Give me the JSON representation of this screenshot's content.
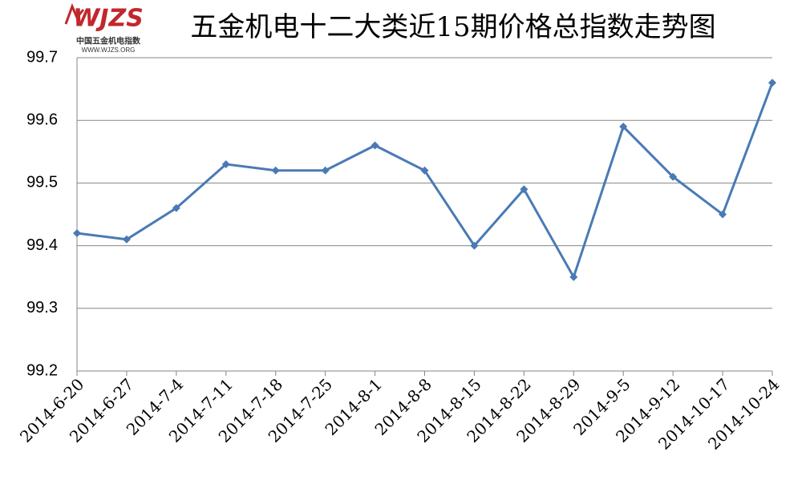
{
  "logo": {
    "mark": "WJZS",
    "name": "中国五金机电指数",
    "url": "WWW.WJZS.ORG"
  },
  "chart_data": {
    "type": "line",
    "title": "五金机电十二大类近15期价格总指数走势图",
    "categories": [
      "2014-6-20",
      "2014-6-27",
      "2014-7-4",
      "2014-7-11",
      "2014-7-18",
      "2014-7-25",
      "2014-8-1",
      "2014-8-8",
      "2014-8-15",
      "2014-8-22",
      "2014-8-29",
      "2014-9-5",
      "2014-9-12",
      "2014-10-17",
      "2014-10-24"
    ],
    "values": [
      99.42,
      99.41,
      99.46,
      99.53,
      99.52,
      99.52,
      99.56,
      99.52,
      99.4,
      99.49,
      99.35,
      99.59,
      99.51,
      99.45,
      99.66
    ],
    "color": "#4a7ab5",
    "ylim": [
      99.2,
      99.7
    ],
    "yticks": [
      99.2,
      99.3,
      99.4,
      99.5,
      99.6,
      99.7
    ],
    "grid": true
  }
}
